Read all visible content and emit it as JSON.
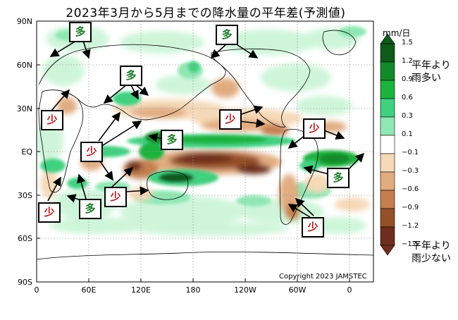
{
  "title": "2023年3月から5月までの降水量の平年差(予測値)",
  "unit": "mm/日",
  "colorbar": {
    "values": [
      "1.5",
      "1.2",
      "0.9",
      "0.6",
      "0.3",
      "0.1",
      "−0.1",
      "−0.3",
      "−0.6",
      "−0.9",
      "−1.2",
      "−1.5"
    ],
    "colors": [
      "#0d5a1a",
      "#138a2a",
      "#1cb23e",
      "#40d080",
      "#8fe7b4",
      "#c9f4d6",
      "#ffffff",
      "#f5d9b8",
      "#e1ac80",
      "#c57e4e",
      "#955027",
      "#6e2f1e"
    ],
    "wet_note": [
      "平年より",
      "雨多い"
    ],
    "dry_note": [
      "平年より",
      "雨少ない"
    ]
  },
  "axes": {
    "y_labels": [
      "90N",
      "60N",
      "30N",
      "EQ",
      "30S",
      "60S",
      "90S"
    ],
    "x_labels": [
      "0",
      "60E",
      "120E",
      "180",
      "120W",
      "60W",
      "0"
    ]
  },
  "copyright": "Copyright 2023 JAMSTEC",
  "badges": {
    "wet_text": "多",
    "dry_text": "少"
  }
}
